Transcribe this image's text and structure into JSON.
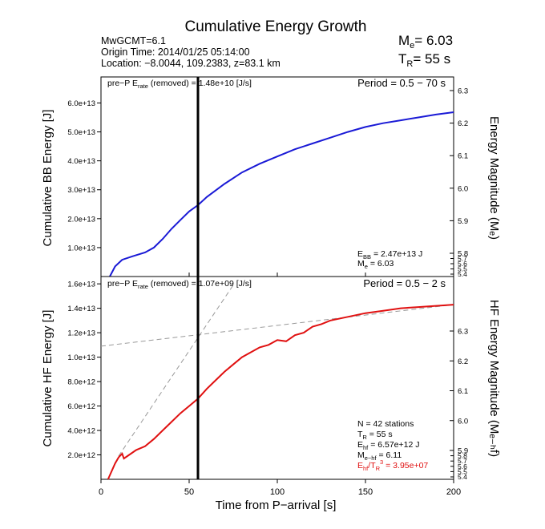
{
  "title": "Cumulative Energy Growth",
  "header": {
    "line1": "MwGCMT=6.1",
    "line2": "Origin Time: 2014/01/25 05:14:00",
    "line3": "Location: −8.0044, 109.2383, z=83.1 km",
    "me_label": "M",
    "me_sub": "e",
    "me_value": "= 6.03",
    "tr_label": "T",
    "tr_sub": "R",
    "tr_value": "= 55 s"
  },
  "xaxis": {
    "label": "Time from P−arrival [s]",
    "range": [
      0,
      200
    ],
    "ticks": [
      0,
      50,
      100,
      150,
      200
    ],
    "ticklabels": [
      "0",
      "50",
      "100",
      "150",
      "200"
    ]
  },
  "vline_x": 55,
  "colors": {
    "bb": "#1a1ad6",
    "hf": "#e01010",
    "dash": "#999999",
    "eratio": "#e01010"
  },
  "panels": {
    "bb": {
      "ylabel": "Cumulative BB Energy [J]",
      "right_label": "Energy Magnitude (Mₑ)",
      "period": "Period = 0.5 − 70 s",
      "pre_p_a": "pre−P E",
      "pre_p_sub": "rate",
      "pre_p_b": " (removed) = 1.48e+10 [J/s]",
      "ebb_a": "E",
      "ebb_sub": "BB",
      "ebb_b": " = 2.47e+13 J",
      "me_line": "M",
      "me_line_sub": "e",
      "me_line_val": " = 6.03",
      "ylim": [
        0,
        69000000000000.0
      ],
      "yticks": [
        10000000000000.0,
        20000000000000.0,
        30000000000000.0,
        40000000000000.0,
        50000000000000.0,
        60000000000000.0
      ],
      "yticklabels": [
        "1.0e+13",
        "2.0e+13",
        "3.0e+13",
        "4.0e+13",
        "5.0e+13",
        "6.0e+13"
      ],
      "right_ticks": [
        5.8,
        5.9,
        6.0,
        6.1,
        6.2,
        6.3
      ],
      "right_ticklabels": [
        "5.8",
        "5.9",
        "6.0",
        "6.1",
        "6.2",
        "6.3"
      ],
      "right_small_ticks": [
        "5.7",
        "5.6",
        "5.5",
        "5.4"
      ]
    },
    "hf": {
      "ylabel": "Cumulative HF Energy [J]",
      "right_label": "HF Energy Magnitude (Mₑ₋ₕf)",
      "period": "Period = 0.5 − 2 s",
      "pre_p_a": "pre−P E",
      "pre_p_sub": "rate",
      "pre_p_b": " (removed) = 1.07e+09 [J/s]",
      "n_line": "N = 42 stations",
      "tr_line_a": "T",
      "tr_line_sub": "R",
      "tr_line_b": " = 55  s",
      "ehf_a": "E",
      "ehf_sub": "hf",
      "ehf_b": " = 6.57e+12 J",
      "mehf_a": "M",
      "mehf_sub": "e−hf",
      "mehf_b": " = 6.11",
      "ratio_a": "E",
      "ratio_sub": "hf",
      "ratio_b": "/T",
      "ratio_sub2": "R",
      "ratio_sup": "3",
      "ratio_c": " =  3.95e+07",
      "ylim": [
        0,
        16600000000000.0
      ],
      "yticks": [
        2000000000000.0,
        4000000000000.0,
        6000000000000.0,
        8000000000000.0,
        10000000000000.0,
        12000000000000.0,
        14000000000000.0,
        16000000000000.0
      ],
      "yticklabels": [
        "2.0e+12",
        "4.0e+12",
        "6.0e+12",
        "8.0e+12",
        "1.0e+13",
        "1.2e+13",
        "1.4e+13",
        "1.6e+13"
      ],
      "right_ticks": [
        5.9,
        6.0,
        6.1,
        6.2,
        6.3
      ],
      "right_ticklabels": [
        "5.9",
        "6.0",
        "6.1",
        "6.2",
        "6.3"
      ],
      "right_small_ticks": [
        "5.8",
        "5.7",
        "5.6",
        "5.5",
        "5.4"
      ]
    }
  },
  "chart_data": [
    {
      "type": "line",
      "title": "Cumulative Energy Growth",
      "xlabel": "Time from P−arrival [s]",
      "ylabel": "Cumulative BB Energy [J]",
      "xlim": [
        0,
        200
      ],
      "ylim": [
        0,
        69000000000000.0
      ],
      "series": [
        {
          "x": [
            5,
            8,
            12,
            18,
            25,
            30,
            35,
            40,
            45,
            50,
            55,
            60,
            70,
            80,
            90,
            100,
            110,
            120,
            130,
            140,
            150,
            160,
            170,
            180,
            190,
            200
          ],
          "values": [
            0,
            3500000000000.0,
            5800000000000.0,
            7000000000000.0,
            8300000000000.0,
            10000000000000.0,
            13000000000000.0,
            16500000000000.0,
            19500000000000.0,
            22500000000000.0,
            24700000000000.0,
            27500000000000.0,
            32000000000000.0,
            36000000000000.0,
            39000000000000.0,
            41500000000000.0,
            44000000000000.0,
            46000000000000.0,
            48000000000000.0,
            50000000000000.0,
            51700000000000.0,
            53000000000000.0,
            54000000000000.0,
            55000000000000.0,
            56000000000000.0,
            56800000000000.0
          ]
        }
      ]
    },
    {
      "type": "line",
      "xlabel": "Time from P−arrival [s]",
      "ylabel": "Cumulative HF Energy [J]",
      "xlim": [
        0,
        200
      ],
      "ylim": [
        0,
        16600000000000.0
      ],
      "series": [
        {
          "x": [
            4,
            8,
            10,
            12,
            13,
            15,
            20,
            25,
            30,
            35,
            40,
            45,
            50,
            55,
            60,
            65,
            70,
            75,
            80,
            85,
            90,
            95,
            100,
            105,
            110,
            115,
            120,
            125,
            130,
            140,
            150,
            160,
            170,
            180,
            190,
            200
          ],
          "values": [
            0,
            1300000000000.0,
            1800000000000.0,
            2100000000000.0,
            1700000000000.0,
            1900000000000.0,
            2400000000000.0,
            2700000000000.0,
            3300000000000.0,
            4000000000000.0,
            4700000000000.0,
            5400000000000.0,
            6000000000000.0,
            6600000000000.0,
            7400000000000.0,
            8100000000000.0,
            8800000000000.0,
            9400000000000.0,
            10000000000000.0,
            10400000000000.0,
            10800000000000.0,
            11000000000000.0,
            11400000000000.0,
            11300000000000.0,
            11800000000000.0,
            12000000000000.0,
            12500000000000.0,
            12700000000000.0,
            13000000000000.0,
            13300000000000.0,
            13600000000000.0,
            13800000000000.0,
            14000000000000.0,
            14100000000000.0,
            14200000000000.0,
            14300000000000.0
          ]
        },
        {
          "x": [
            0,
            200
          ],
          "values": [
            10900000000000.0,
            14300000000000.0
          ]
        },
        {
          "x": [
            10,
            75
          ],
          "values": [
            1900000000000.0,
            15900000000000.0
          ]
        }
      ]
    }
  ]
}
